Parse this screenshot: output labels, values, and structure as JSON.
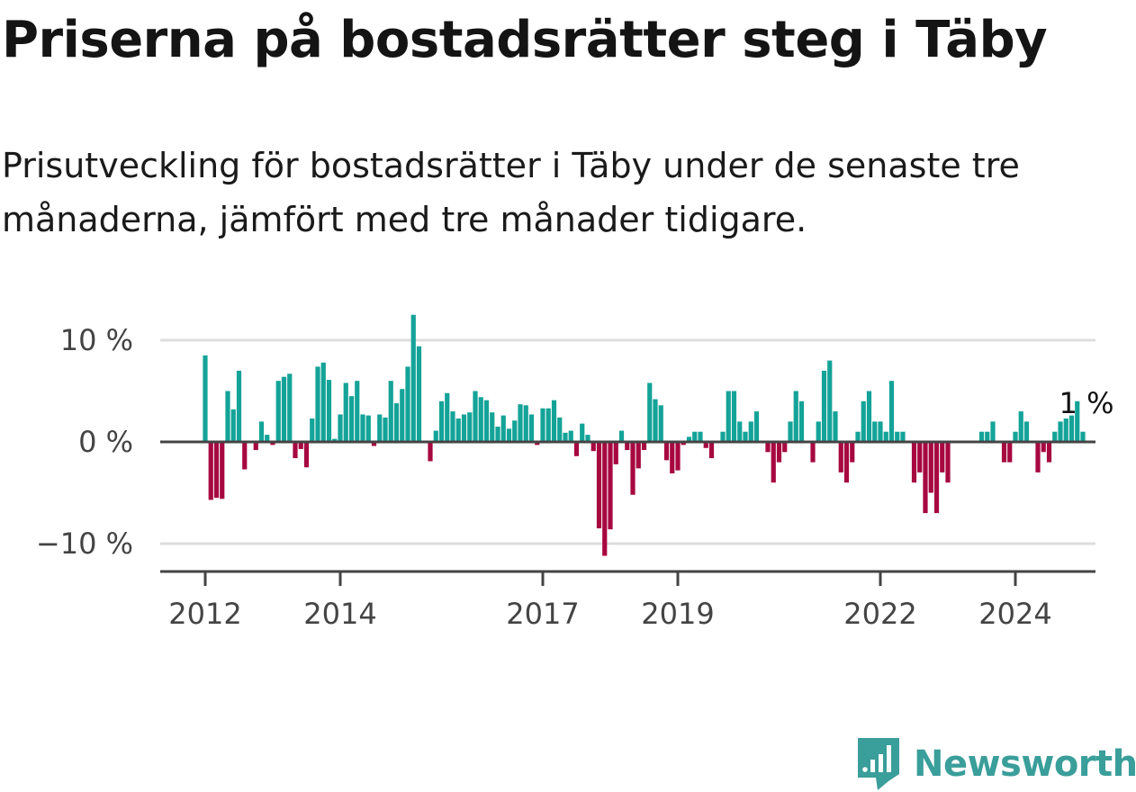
{
  "title": "Priserna på bostadsrätter steg i Täby",
  "subtitle": "Prisutveckling för bostadsrätter i Täby under de senaste tre månaderna, jämfört med tre månader tidigare.",
  "brand": {
    "name": "Newsworthy",
    "color": "#3a9e9a"
  },
  "colors": {
    "positive": "#14a398",
    "negative": "#a6083f",
    "grid": "#dddddd",
    "axis": "#444444"
  },
  "chart_data": {
    "type": "bar",
    "title": "Priserna på bostadsrätter steg i Täby",
    "xlabel": "",
    "ylabel": "",
    "unit": "%",
    "x_start": "2012-01",
    "frequency": "monthly",
    "ylim": [
      -13,
      13
    ],
    "yticks": [
      10,
      0,
      -10
    ],
    "ytick_labels": [
      "10 %",
      "0 %",
      "−10 %"
    ],
    "xticks": [
      "2012",
      "2014",
      "2017",
      "2019",
      "2022",
      "2024"
    ],
    "end_label": "1 %",
    "values": [
      8.5,
      -5.7,
      -5.5,
      -5.6,
      5.0,
      3.2,
      7.0,
      -2.7,
      0.0,
      -0.8,
      2.0,
      0.7,
      -0.3,
      6.0,
      6.4,
      6.7,
      -1.6,
      -0.7,
      -2.5,
      2.3,
      7.4,
      7.8,
      6.1,
      0.3,
      2.7,
      5.8,
      4.5,
      6.0,
      2.7,
      2.6,
      -0.4,
      2.7,
      2.4,
      6.0,
      3.8,
      5.2,
      7.4,
      12.5,
      9.4,
      0.0,
      -1.9,
      1.1,
      4.0,
      4.8,
      3.0,
      2.3,
      2.7,
      2.9,
      5.0,
      4.4,
      4.1,
      2.9,
      1.5,
      2.6,
      1.3,
      2.1,
      3.7,
      3.6,
      2.7,
      -0.3,
      3.3,
      3.3,
      4.1,
      2.4,
      0.9,
      1.1,
      -1.4,
      1.8,
      0.7,
      -0.9,
      -8.5,
      -11.2,
      -8.6,
      -2.2,
      1.1,
      -0.8,
      -5.2,
      -2.6,
      -0.8,
      5.8,
      4.2,
      3.6,
      -1.8,
      -3.1,
      -2.8,
      -0.3,
      0.5,
      1.0,
      1.0,
      -0.6,
      -1.6,
      0.0,
      1.0,
      5.0,
      5.0,
      2.0,
      1.0,
      2.0,
      3.0,
      0.0,
      -1.0,
      -4.0,
      -2.0,
      -1.0,
      2.0,
      5.0,
      4.0,
      0.0,
      -2.0,
      2.0,
      7.0,
      8.0,
      3.0,
      -3.0,
      -4.0,
      -2.0,
      1.0,
      4.0,
      5.0,
      2.0,
      2.0,
      1.0,
      6.0,
      1.0,
      1.0,
      0.0,
      -4.0,
      -3.0,
      -7.0,
      -5.0,
      -7.0,
      -3.0,
      -4.0,
      0.0,
      0.0,
      0.0,
      0.0,
      0.0,
      1.0,
      1.0,
      2.0,
      0.0,
      -2.0,
      -2.0,
      1.0,
      3.0,
      2.0,
      0.0,
      -3.0,
      -1.0,
      -2.0,
      1.0,
      2.0,
      2.3,
      2.6,
      4.0,
      1.0
    ]
  }
}
